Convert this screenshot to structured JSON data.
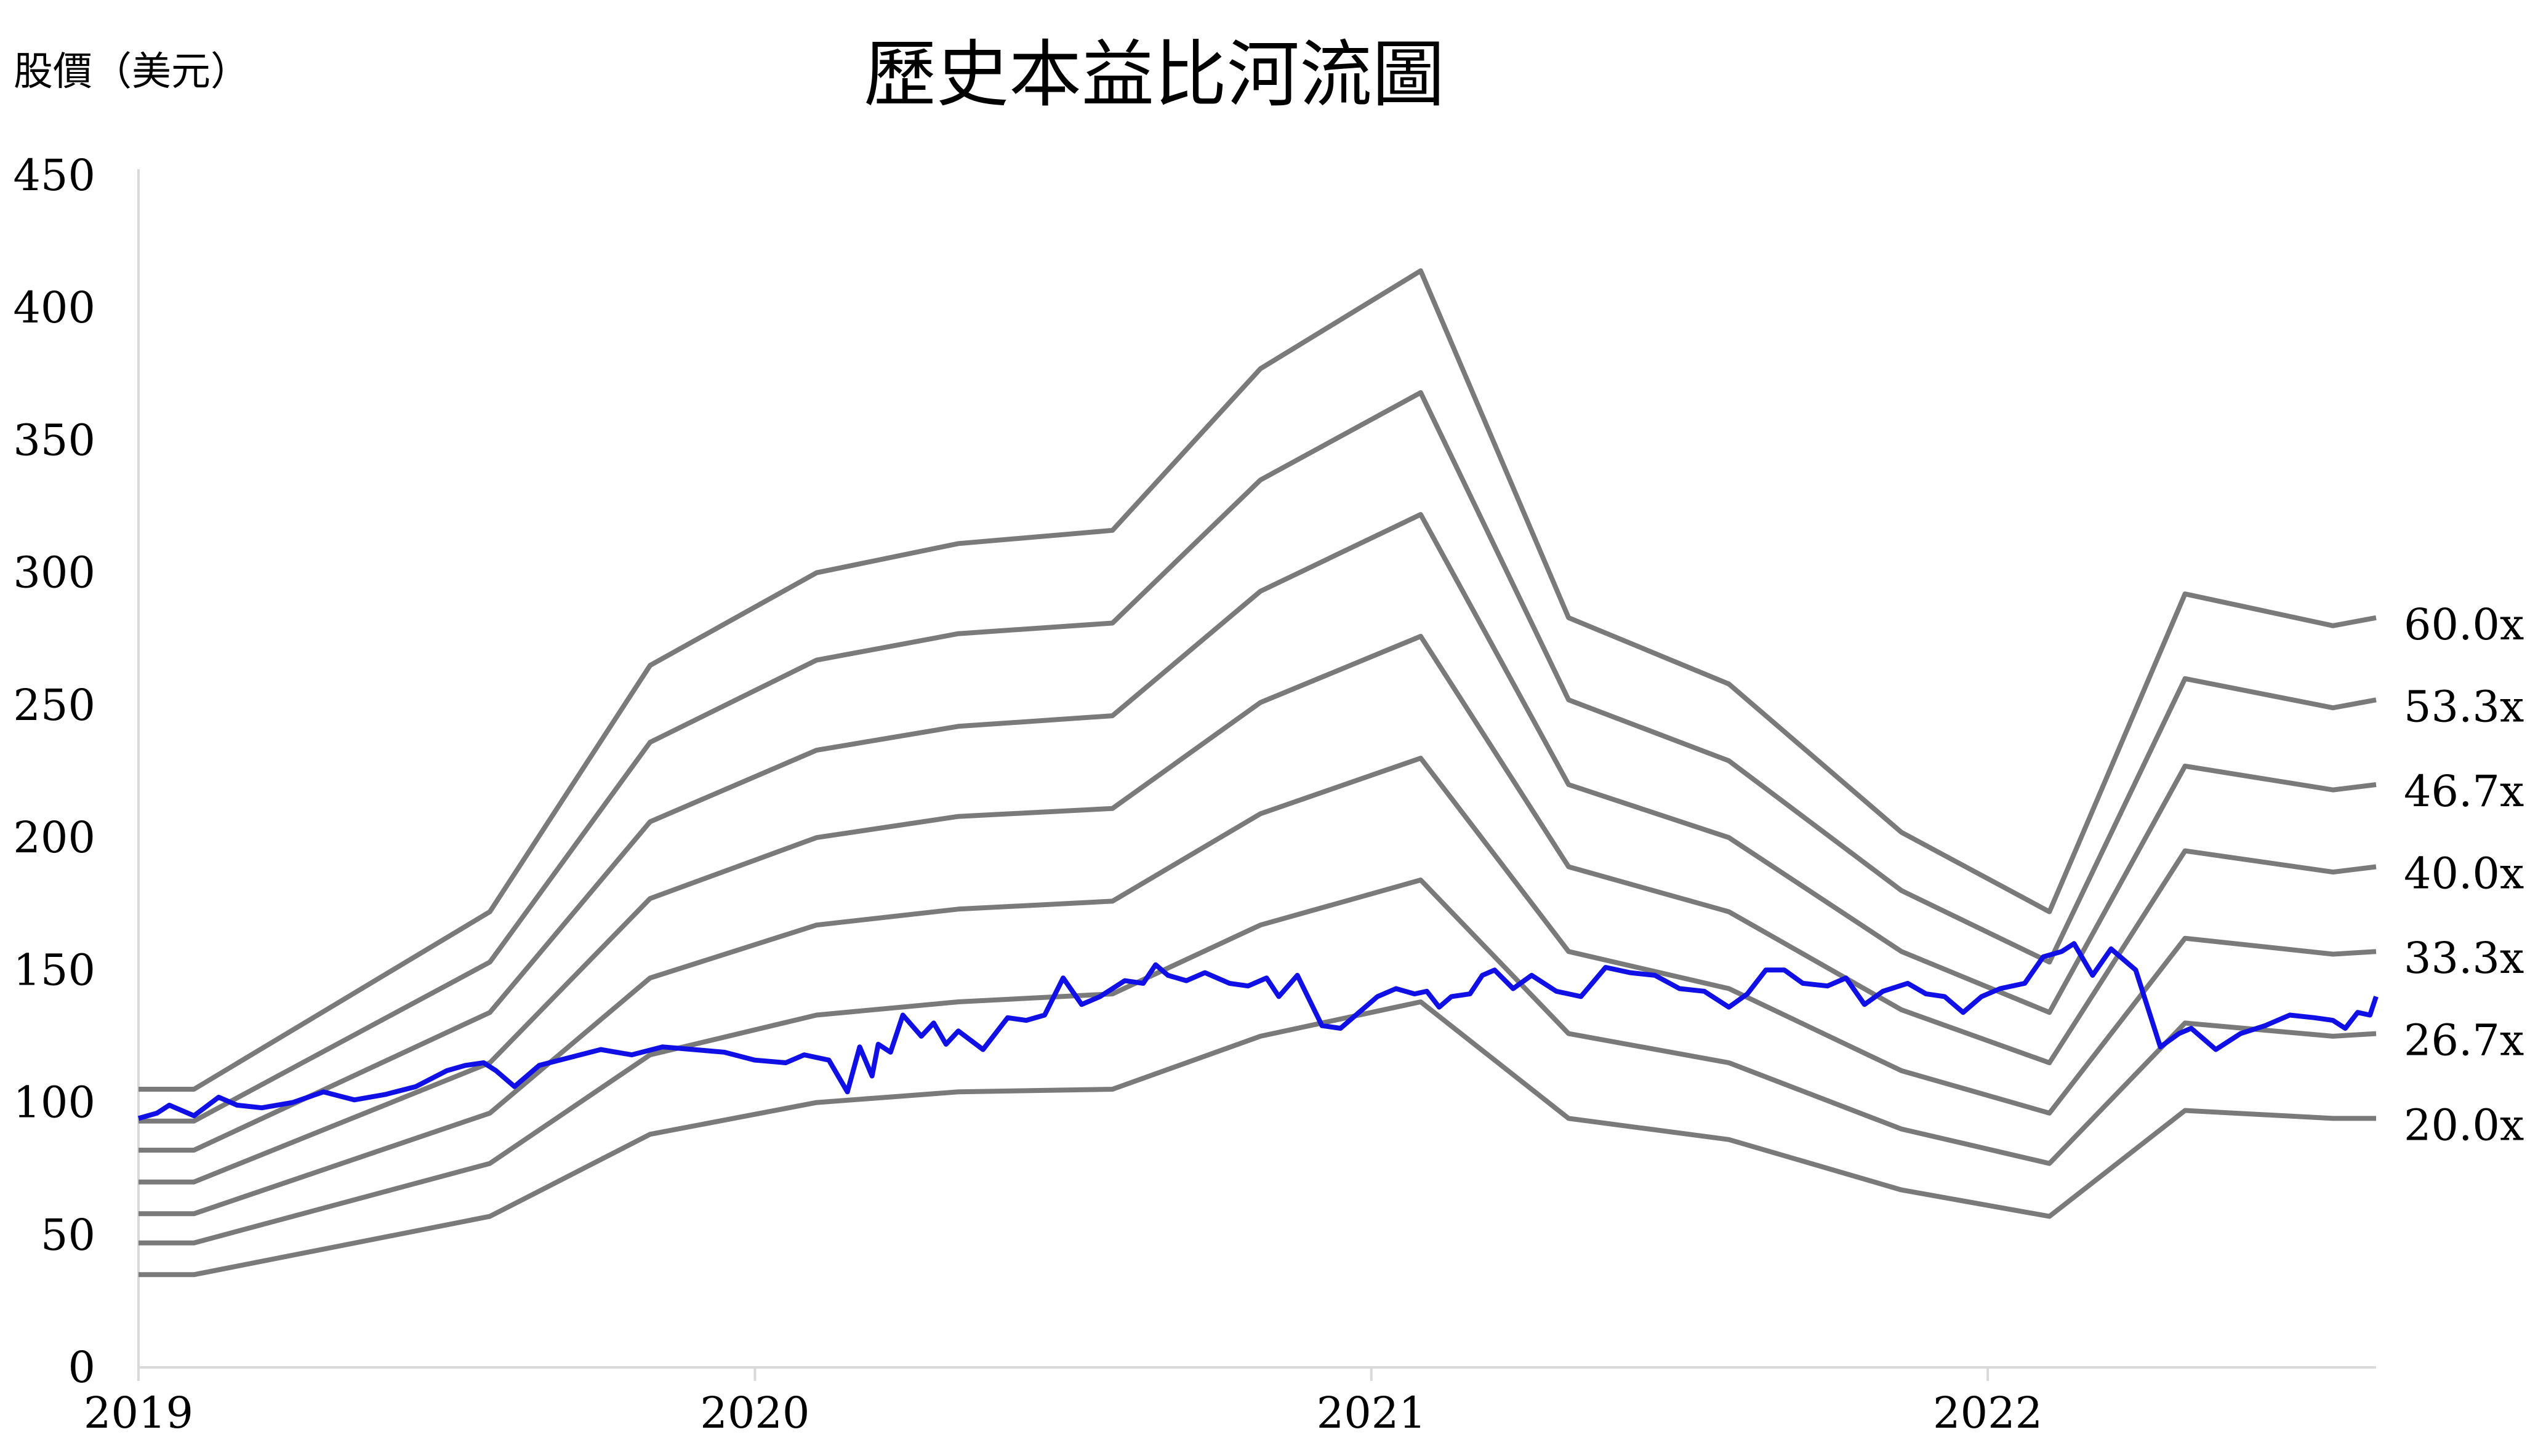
{
  "chart_data": {
    "type": "line",
    "title": "歷史本益比河流圖",
    "ylabel": "股價（美元）",
    "xlabel": "",
    "ylim": [
      0,
      450
    ],
    "y_ticks": [
      "0",
      "50",
      "100",
      "150",
      "200",
      "250",
      "300",
      "350",
      "400",
      "450"
    ],
    "x_ticks": [
      "2019",
      "2020",
      "2021",
      "2022"
    ],
    "x_range": [
      2019.0,
      2022.63
    ],
    "grid": false,
    "legend": "right-side labels",
    "colors": {
      "band": "#7a7a7a",
      "price": "#1010e6",
      "axis": "#d9d9d9"
    },
    "band_x": [
      2019.0,
      2019.09,
      2019.57,
      2019.83,
      2020.1,
      2020.33,
      2020.58,
      2020.82,
      2021.08,
      2021.32,
      2021.58,
      2021.86,
      2022.1,
      2022.32,
      2022.56,
      2022.63
    ],
    "series": [
      {
        "name": "60.0x",
        "values": [
          105,
          105,
          172,
          265,
          300,
          311,
          316,
          377,
          414,
          283,
          258,
          202,
          172,
          292,
          280,
          283
        ]
      },
      {
        "name": "53.3x",
        "values": [
          93,
          93,
          153,
          236,
          267,
          277,
          281,
          335,
          368,
          252,
          229,
          180,
          153,
          260,
          249,
          252
        ]
      },
      {
        "name": "46.7x",
        "values": [
          82,
          82,
          134,
          206,
          233,
          242,
          246,
          293,
          322,
          220,
          200,
          157,
          134,
          227,
          218,
          220
        ]
      },
      {
        "name": "40.0x",
        "values": [
          70,
          70,
          115,
          177,
          200,
          208,
          211,
          251,
          276,
          189,
          172,
          135,
          115,
          195,
          187,
          189
        ]
      },
      {
        "name": "33.3x",
        "values": [
          58,
          58,
          96,
          147,
          167,
          173,
          176,
          209,
          230,
          157,
          143,
          112,
          96,
          162,
          156,
          157
        ]
      },
      {
        "name": "26.7x",
        "values": [
          47,
          47,
          77,
          118,
          133,
          138,
          141,
          167,
          184,
          126,
          115,
          90,
          77,
          130,
          125,
          126
        ]
      },
      {
        "name": "20.0x",
        "values": [
          35,
          35,
          57,
          88,
          100,
          104,
          105,
          125,
          138,
          94,
          86,
          67,
          57,
          97,
          94,
          94
        ]
      }
    ],
    "price": {
      "x": [
        2019.0,
        2019.03,
        2019.05,
        2019.09,
        2019.13,
        2019.16,
        2019.2,
        2019.25,
        2019.3,
        2019.35,
        2019.4,
        2019.45,
        2019.5,
        2019.53,
        2019.56,
        2019.58,
        2019.61,
        2019.65,
        2019.7,
        2019.75,
        2019.8,
        2019.85,
        2019.9,
        2019.95,
        2020.0,
        2020.05,
        2020.08,
        2020.12,
        2020.15,
        2020.17,
        2020.19,
        2020.2,
        2020.22,
        2020.24,
        2020.27,
        2020.29,
        2020.31,
        2020.33,
        2020.37,
        2020.41,
        2020.44,
        2020.47,
        2020.5,
        2020.53,
        2020.56,
        2020.6,
        2020.63,
        2020.65,
        2020.67,
        2020.7,
        2020.73,
        2020.77,
        2020.8,
        2020.83,
        2020.85,
        2020.88,
        2020.92,
        2020.95,
        2020.98,
        2021.01,
        2021.04,
        2021.07,
        2021.09,
        2021.11,
        2021.13,
        2021.16,
        2021.18,
        2021.2,
        2021.23,
        2021.26,
        2021.3,
        2021.34,
        2021.38,
        2021.42,
        2021.46,
        2021.5,
        2021.54,
        2021.58,
        2021.61,
        2021.64,
        2021.67,
        2021.7,
        2021.74,
        2021.77,
        2021.8,
        2021.83,
        2021.87,
        2021.9,
        2021.93,
        2021.96,
        2021.99,
        2022.02,
        2022.06,
        2022.09,
        2022.12,
        2022.14,
        2022.17,
        2022.2,
        2022.24,
        2022.28,
        2022.31,
        2022.33,
        2022.35,
        2022.37,
        2022.41,
        2022.45,
        2022.49,
        2022.53,
        2022.56,
        2022.58,
        2022.6,
        2022.62,
        2022.63
      ],
      "values": [
        94,
        96,
        99,
        95,
        102,
        99,
        98,
        100,
        104,
        101,
        103,
        106,
        112,
        114,
        115,
        112,
        106,
        114,
        117,
        120,
        118,
        121,
        120,
        119,
        116,
        115,
        118,
        116,
        104,
        121,
        110,
        122,
        119,
        133,
        125,
        130,
        122,
        127,
        120,
        132,
        131,
        133,
        147,
        137,
        140,
        146,
        145,
        152,
        148,
        146,
        149,
        145,
        144,
        147,
        140,
        148,
        129,
        128,
        134,
        140,
        143,
        141,
        142,
        136,
        140,
        141,
        148,
        150,
        143,
        148,
        142,
        140,
        151,
        149,
        148,
        143,
        142,
        136,
        141,
        150,
        150,
        145,
        144,
        147,
        137,
        142,
        145,
        141,
        140,
        134,
        140,
        143,
        145,
        155,
        157,
        160,
        148,
        158,
        150,
        121,
        126,
        128,
        124,
        120,
        126,
        129,
        133,
        132,
        131,
        128,
        134,
        133,
        140
      ]
    }
  }
}
